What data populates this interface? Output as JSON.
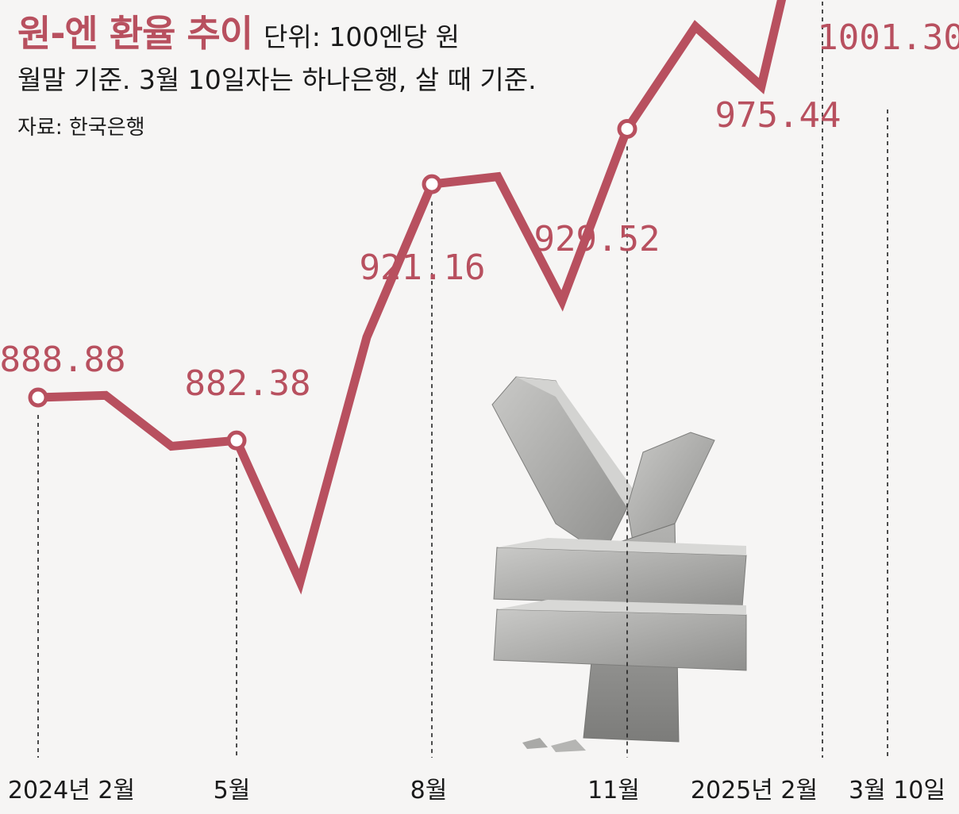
{
  "chart_data": {
    "type": "line",
    "title": "원-엔 환율 추이",
    "unit": "단위: 100엔당 원",
    "subtitle": "월말 기준. 3월 10일자는 하나은행, 살 때 기준.",
    "source": "자료: 한국은행",
    "x": [
      "2024-02",
      "2024-03",
      "2024-04",
      "2024-05",
      "2024-06",
      "2024-07",
      "2024-08",
      "2024-09",
      "2024-10",
      "2024-11",
      "2024-12",
      "2025-01",
      "2025-02",
      "2025-03-10"
    ],
    "values": [
      888.88,
      889.2,
      881.5,
      882.38,
      861.0,
      898.0,
      921.16,
      922.3,
      903.5,
      929.52,
      945.0,
      936.0,
      975.44,
      1001.3
    ],
    "labeled_points": [
      {
        "index": 0,
        "label": "888.88"
      },
      {
        "index": 3,
        "label": "882.38"
      },
      {
        "index": 6,
        "label": "921.16"
      },
      {
        "index": 9,
        "label": "929.52"
      },
      {
        "index": 12,
        "label": "975.44"
      },
      {
        "index": 13,
        "label": "1001.30"
      }
    ],
    "tick_labels": [
      {
        "index": 0,
        "label": "2024년 2월"
      },
      {
        "index": 3,
        "label": "5월"
      },
      {
        "index": 6,
        "label": "8월"
      },
      {
        "index": 9,
        "label": "11월"
      },
      {
        "index": 12,
        "label": "2025년 2월"
      },
      {
        "index": 13,
        "label": "3월 10일"
      }
    ],
    "ylim": [
      850,
      1010
    ],
    "grid": false,
    "line_color": "#b8505f",
    "decoration": "yen-symbol-sculpture"
  }
}
